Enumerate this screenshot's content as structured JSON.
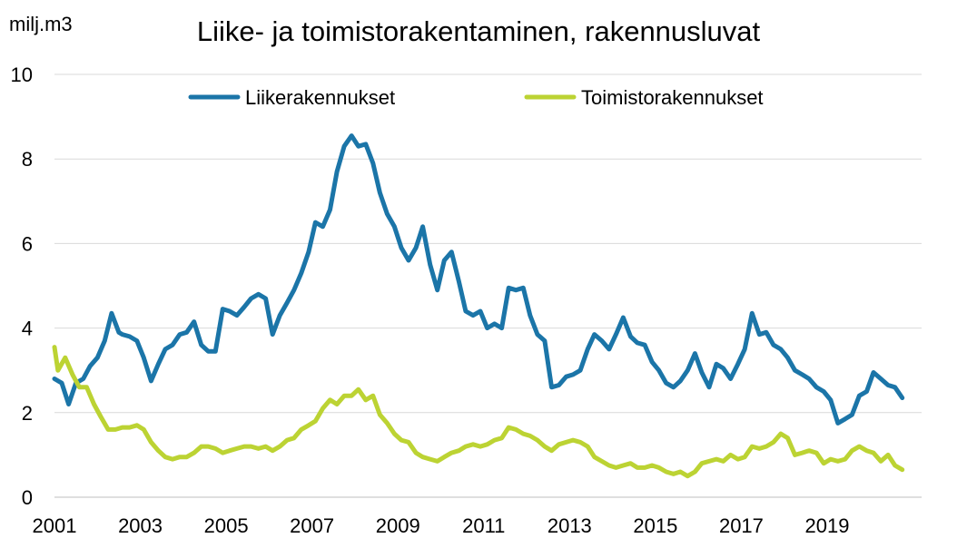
{
  "chart_data": {
    "type": "line",
    "title": "Liike- ja toimistorakentaminen, rakennusluvat",
    "ylabel": "milj.m3",
    "xlabel": "",
    "ylim": [
      0,
      10
    ],
    "xlim": [
      2001,
      2021.2
    ],
    "y_ticks": [
      0,
      2,
      4,
      6,
      8,
      10
    ],
    "x_ticks": [
      "2001",
      "2003",
      "2005",
      "2007",
      "2009",
      "2011",
      "2013",
      "2015",
      "2017",
      "2019"
    ],
    "grid": true,
    "legend_position": "top",
    "series": [
      {
        "name": "Liikerakennukset",
        "color": "#1b75a8",
        "x": [
          2001.0,
          2001.17,
          2001.33,
          2001.5,
          2001.67,
          2001.83,
          2002.0,
          2002.17,
          2002.33,
          2002.5,
          2002.58,
          2002.75,
          2002.92,
          2003.08,
          2003.25,
          2003.42,
          2003.58,
          2003.75,
          2003.92,
          2004.08,
          2004.25,
          2004.42,
          2004.58,
          2004.75,
          2004.92,
          2005.08,
          2005.25,
          2005.42,
          2005.58,
          2005.75,
          2005.92,
          2006.08,
          2006.25,
          2006.42,
          2006.58,
          2006.75,
          2006.92,
          2007.08,
          2007.25,
          2007.42,
          2007.58,
          2007.75,
          2007.92,
          2008.08,
          2008.25,
          2008.42,
          2008.58,
          2008.75,
          2008.92,
          2009.08,
          2009.25,
          2009.42,
          2009.58,
          2009.75,
          2009.92,
          2010.08,
          2010.25,
          2010.42,
          2010.58,
          2010.75,
          2010.92,
          2011.08,
          2011.25,
          2011.42,
          2011.58,
          2011.75,
          2011.92,
          2012.08,
          2012.25,
          2012.42,
          2012.58,
          2012.75,
          2012.92,
          2013.08,
          2013.25,
          2013.42,
          2013.58,
          2013.75,
          2013.92,
          2014.08,
          2014.25,
          2014.42,
          2014.58,
          2014.75,
          2014.92,
          2015.08,
          2015.25,
          2015.42,
          2015.58,
          2015.75,
          2015.92,
          2016.08,
          2016.25,
          2016.42,
          2016.58,
          2016.75,
          2016.92,
          2017.08,
          2017.25,
          2017.42,
          2017.58,
          2017.75,
          2017.92,
          2018.08,
          2018.25,
          2018.42,
          2018.58,
          2018.75,
          2018.92,
          2019.08,
          2019.25,
          2019.42,
          2019.58,
          2019.75,
          2019.92,
          2020.08,
          2020.25,
          2020.42,
          2020.58,
          2020.75
        ],
        "values": [
          2.8,
          2.7,
          2.2,
          2.7,
          2.8,
          3.1,
          3.3,
          3.7,
          4.35,
          3.9,
          3.85,
          3.8,
          3.7,
          3.3,
          2.75,
          3.15,
          3.5,
          3.6,
          3.85,
          3.9,
          4.15,
          3.6,
          3.45,
          3.45,
          4.45,
          4.4,
          4.3,
          4.5,
          4.7,
          4.8,
          4.7,
          3.85,
          4.3,
          4.6,
          4.9,
          5.3,
          5.8,
          6.5,
          6.4,
          6.8,
          7.7,
          8.3,
          8.55,
          8.3,
          8.35,
          7.9,
          7.2,
          6.7,
          6.4,
          5.9,
          5.6,
          5.9,
          6.4,
          5.5,
          4.9,
          5.6,
          5.8,
          5.1,
          4.4,
          4.3,
          4.4,
          4.0,
          4.1,
          4.0,
          4.95,
          4.9,
          4.95,
          4.3,
          3.85,
          3.7,
          2.6,
          2.65,
          2.85,
          2.9,
          3.0,
          3.5,
          3.85,
          3.7,
          3.5,
          3.85,
          4.25,
          3.8,
          3.65,
          3.6,
          3.2,
          3.0,
          2.7,
          2.6,
          2.75,
          3.0,
          3.4,
          2.95,
          2.6,
          3.15,
          3.05,
          2.8,
          3.15,
          3.5,
          4.35,
          3.85,
          3.9,
          3.6,
          3.5,
          3.3,
          3.0,
          2.9,
          2.8,
          2.6,
          2.5,
          2.3,
          1.75,
          1.85,
          1.95,
          2.4,
          2.5,
          2.95,
          2.8,
          2.65,
          2.6,
          2.35
        ]
      },
      {
        "name": "Toimistorakennukset",
        "color": "#bcd333",
        "x": [
          2001.0,
          2001.08,
          2001.25,
          2001.42,
          2001.58,
          2001.75,
          2001.92,
          2002.08,
          2002.25,
          2002.42,
          2002.58,
          2002.75,
          2002.92,
          2003.08,
          2003.25,
          2003.42,
          2003.58,
          2003.75,
          2003.92,
          2004.08,
          2004.25,
          2004.42,
          2004.58,
          2004.75,
          2004.92,
          2005.08,
          2005.25,
          2005.42,
          2005.58,
          2005.75,
          2005.92,
          2006.08,
          2006.25,
          2006.42,
          2006.58,
          2006.75,
          2006.92,
          2007.08,
          2007.25,
          2007.42,
          2007.58,
          2007.75,
          2007.92,
          2008.08,
          2008.25,
          2008.42,
          2008.58,
          2008.75,
          2008.92,
          2009.08,
          2009.25,
          2009.42,
          2009.58,
          2009.75,
          2009.92,
          2010.08,
          2010.25,
          2010.42,
          2010.58,
          2010.75,
          2010.92,
          2011.08,
          2011.25,
          2011.42,
          2011.58,
          2011.75,
          2011.92,
          2012.08,
          2012.25,
          2012.42,
          2012.58,
          2012.75,
          2012.92,
          2013.08,
          2013.25,
          2013.42,
          2013.58,
          2013.75,
          2013.92,
          2014.08,
          2014.25,
          2014.42,
          2014.58,
          2014.75,
          2014.92,
          2015.08,
          2015.25,
          2015.42,
          2015.58,
          2015.75,
          2015.92,
          2016.08,
          2016.25,
          2016.42,
          2016.58,
          2016.75,
          2016.92,
          2017.08,
          2017.25,
          2017.42,
          2017.58,
          2017.75,
          2017.92,
          2018.08,
          2018.25,
          2018.42,
          2018.58,
          2018.75,
          2018.92,
          2019.08,
          2019.25,
          2019.42,
          2019.58,
          2019.75,
          2019.92,
          2020.08,
          2020.25,
          2020.42,
          2020.58,
          2020.75
        ],
        "values": [
          3.55,
          3.0,
          3.3,
          2.9,
          2.6,
          2.6,
          2.2,
          1.9,
          1.6,
          1.6,
          1.65,
          1.65,
          1.7,
          1.6,
          1.3,
          1.1,
          0.95,
          0.9,
          0.95,
          0.95,
          1.05,
          1.2,
          1.2,
          1.15,
          1.05,
          1.1,
          1.15,
          1.2,
          1.2,
          1.15,
          1.2,
          1.1,
          1.2,
          1.35,
          1.4,
          1.6,
          1.7,
          1.8,
          2.1,
          2.3,
          2.2,
          2.4,
          2.4,
          2.55,
          2.3,
          2.4,
          1.95,
          1.75,
          1.5,
          1.35,
          1.3,
          1.05,
          0.95,
          0.9,
          0.85,
          0.95,
          1.05,
          1.1,
          1.2,
          1.25,
          1.2,
          1.25,
          1.35,
          1.4,
          1.65,
          1.6,
          1.5,
          1.45,
          1.35,
          1.2,
          1.1,
          1.25,
          1.3,
          1.35,
          1.3,
          1.2,
          0.95,
          0.85,
          0.75,
          0.7,
          0.75,
          0.8,
          0.7,
          0.7,
          0.75,
          0.7,
          0.6,
          0.55,
          0.6,
          0.5,
          0.6,
          0.8,
          0.85,
          0.9,
          0.85,
          1.0,
          0.9,
          0.95,
          1.2,
          1.15,
          1.2,
          1.3,
          1.5,
          1.4,
          1.0,
          1.05,
          1.1,
          1.05,
          0.8,
          0.9,
          0.85,
          0.9,
          1.1,
          1.2,
          1.1,
          1.05,
          0.85,
          1.0,
          0.75,
          0.65
        ]
      }
    ]
  }
}
